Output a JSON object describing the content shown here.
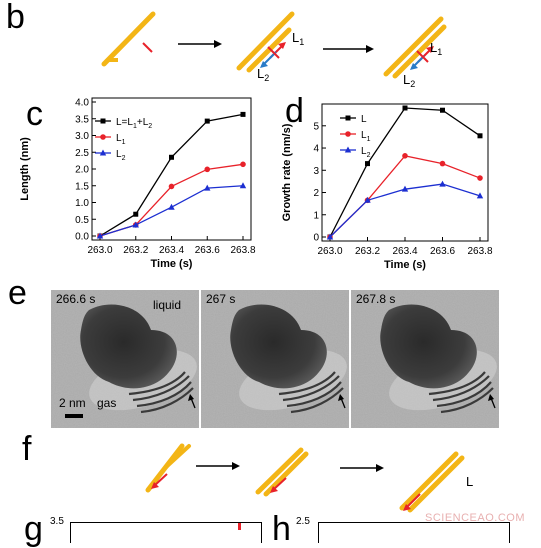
{
  "panels": {
    "b": "b",
    "c": "c",
    "d": "d",
    "e": "e",
    "f": "f",
    "g": "g",
    "h": "h"
  },
  "panel_b": {
    "L1": "L",
    "L1_sub": "1",
    "L2": "L",
    "L2_sub": "2",
    "L1b": "L",
    "L1b_sub": "1",
    "L2b": "L",
    "L2b_sub": "2"
  },
  "panel_f": {
    "L": "L"
  },
  "panel_e": {
    "frames": [
      {
        "time": "266.6 s",
        "label": "liquid"
      },
      {
        "time": "267 s",
        "label": ""
      },
      {
        "time": "267.8 s",
        "label": ""
      }
    ],
    "scale_bar": "2 nm",
    "gas_label": "gas"
  },
  "panel_g": {
    "ytick_top": "3.5"
  },
  "panel_h": {
    "ytick_top": "2.5"
  },
  "watermark": "SCIENCEAO.COM",
  "chart_data": [
    {
      "type": "line",
      "panel": "c",
      "xlabel": "Time (s)",
      "ylabel": "Length (nm)",
      "x": [
        263.0,
        263.2,
        263.4,
        263.6,
        263.8
      ],
      "xticks": [
        "263.0",
        "263.2",
        "263.4",
        "263.6",
        "263.8"
      ],
      "yticks": [
        "0.0",
        "0.5",
        "1.0",
        "1.5",
        "2.0",
        "2.5",
        "3.0",
        "3.5",
        "4.0"
      ],
      "ylim": [
        0,
        4.0
      ],
      "legend_position": "top-left",
      "series": [
        {
          "name": "L=L1+L2",
          "legend": "L=L",
          "legend_sub1": "1",
          "legend_mid": "+L",
          "legend_sub2": "2",
          "color": "#000000",
          "marker": "square",
          "values": [
            0.0,
            0.65,
            2.35,
            3.43,
            3.63
          ]
        },
        {
          "name": "L1",
          "legend": "L",
          "legend_sub1": "1",
          "color": "#e8222a",
          "marker": "circle",
          "values": [
            0.0,
            0.33,
            1.48,
            1.99,
            2.14
          ]
        },
        {
          "name": "L2",
          "legend": "L",
          "legend_sub1": "2",
          "color": "#1c2fd1",
          "marker": "triangle",
          "values": [
            0.0,
            0.33,
            0.86,
            1.43,
            1.5
          ]
        }
      ]
    },
    {
      "type": "line",
      "panel": "d",
      "xlabel": "Time (s)",
      "ylabel": "Growth rate (nm/s)",
      "x": [
        263.0,
        263.2,
        263.4,
        263.6,
        263.8
      ],
      "xticks": [
        "263.0",
        "263.2",
        "263.4",
        "263.6",
        "263.8"
      ],
      "yticks": [
        "0",
        "1",
        "2",
        "3",
        "4",
        "5"
      ],
      "ylim": [
        0,
        5.8
      ],
      "legend_position": "top-left",
      "series": [
        {
          "name": "L",
          "legend": "L",
          "legend_sub1": "",
          "color": "#000000",
          "marker": "square",
          "values": [
            0.0,
            3.3,
            5.8,
            5.7,
            4.55
          ]
        },
        {
          "name": "L1",
          "legend": "L",
          "legend_sub1": "1",
          "color": "#e8222a",
          "marker": "circle",
          "values": [
            0.0,
            1.65,
            3.65,
            3.3,
            2.65
          ]
        },
        {
          "name": "L2",
          "legend": "L",
          "legend_sub1": "2",
          "color": "#1c2fd1",
          "marker": "triangle",
          "values": [
            0.0,
            1.65,
            2.15,
            2.38,
            1.85
          ]
        }
      ]
    }
  ]
}
